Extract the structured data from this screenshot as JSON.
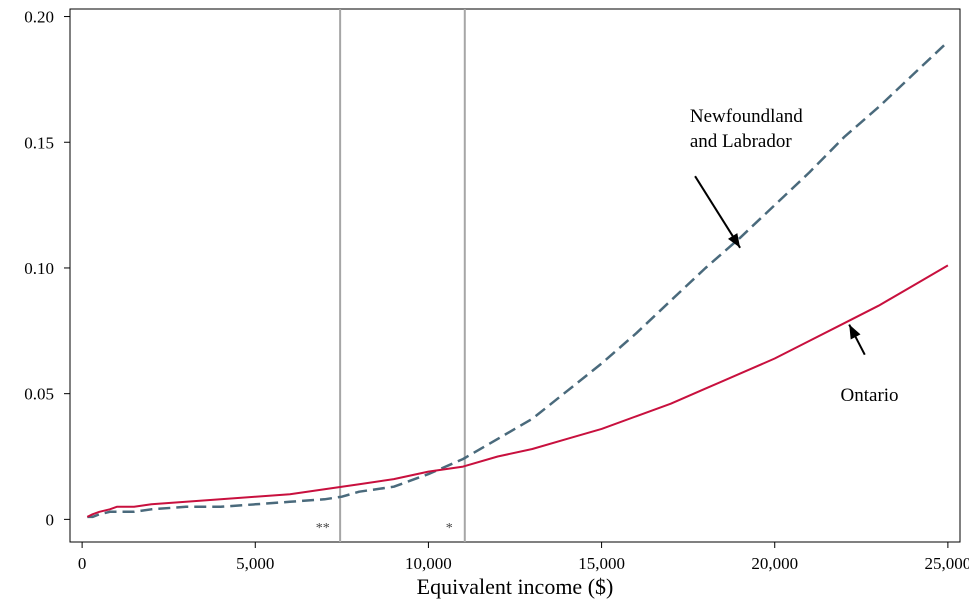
{
  "chart_data": {
    "type": "line",
    "title": "",
    "xlabel": "Equivalent income ($)",
    "ylabel": "",
    "xlim": [
      -350,
      25350
    ],
    "ylim": [
      -0.009,
      0.203
    ],
    "x_ticks": [
      0,
      5000,
      10000,
      15000,
      20000,
      25000
    ],
    "x_tick_labels": [
      "0",
      "5,000",
      "10,000",
      "15,000",
      "20,000",
      "25,000"
    ],
    "y_ticks": [
      0,
      0.05,
      0.1,
      0.15,
      0.2
    ],
    "y_tick_labels": [
      "0",
      "0.05",
      "0.10",
      "0.15",
      "0.20"
    ],
    "grid": false,
    "legend": "none",
    "reference_lines": [
      {
        "x": 7450,
        "label": "**",
        "label_x": 6950
      },
      {
        "x": 11050,
        "label": "*",
        "label_x": 10600
      }
    ],
    "series": [
      {
        "name": "Newfoundland and Labrador",
        "color": "#4a6a7c",
        "dash": true,
        "x": [
          150,
          300,
          500,
          800,
          1000,
          1500,
          2000,
          3000,
          4000,
          5000,
          6000,
          7000,
          7500,
          8000,
          9000,
          10000,
          11000,
          12000,
          13000,
          14000,
          15000,
          16000,
          17000,
          18000,
          19000,
          20000,
          21000,
          22000,
          23000,
          24000,
          25000
        ],
        "y": [
          0.001,
          0.001,
          0.002,
          0.003,
          0.003,
          0.003,
          0.004,
          0.005,
          0.005,
          0.006,
          0.007,
          0.008,
          0.009,
          0.011,
          0.013,
          0.018,
          0.024,
          0.032,
          0.04,
          0.051,
          0.062,
          0.074,
          0.087,
          0.1,
          0.112,
          0.125,
          0.138,
          0.152,
          0.164,
          0.177,
          0.19
        ]
      },
      {
        "name": "Ontario",
        "color": "#c8103e",
        "dash": false,
        "x": [
          150,
          300,
          500,
          800,
          1000,
          1500,
          2000,
          3000,
          4000,
          5000,
          6000,
          7000,
          8000,
          9000,
          10000,
          11000,
          12000,
          13000,
          14000,
          15000,
          16000,
          17000,
          18000,
          19000,
          20000,
          21000,
          22000,
          23000,
          24000,
          25000
        ],
        "y": [
          0.001,
          0.002,
          0.003,
          0.004,
          0.005,
          0.005,
          0.006,
          0.007,
          0.008,
          0.009,
          0.01,
          0.012,
          0.014,
          0.016,
          0.019,
          0.021,
          0.025,
          0.028,
          0.032,
          0.036,
          0.041,
          0.046,
          0.052,
          0.058,
          0.064,
          0.071,
          0.078,
          0.085,
          0.093,
          0.101
        ]
      }
    ],
    "annotations": [
      {
        "series": "Newfoundland and Labrador",
        "lines": [
          "Newfoundland",
          "and Labrador"
        ],
        "text_x": 17550,
        "text_y": 0.158,
        "arrow_from": [
          17700,
          0.1365
        ],
        "arrow_to": [
          19000,
          0.108
        ]
      },
      {
        "series": "Ontario",
        "lines": [
          "Ontario"
        ],
        "text_x": 21900,
        "text_y": 0.047,
        "arrow_from": [
          22600,
          0.0655
        ],
        "arrow_to": [
          22150,
          0.0775
        ]
      }
    ]
  }
}
